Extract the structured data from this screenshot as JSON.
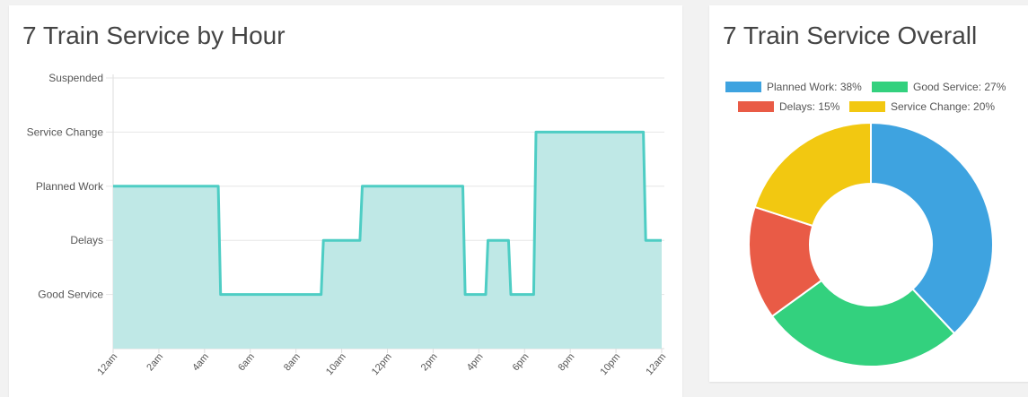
{
  "charts": {
    "hourly_title": "7 Train Service by Hour",
    "overall_title": "7 Train Service Overall"
  },
  "chart_data": [
    {
      "type": "area",
      "title": "7 Train Service by Hour",
      "x_ticks": [
        "12am",
        "2am",
        "4am",
        "6am",
        "8am",
        "10am",
        "12pm",
        "2pm",
        "4pm",
        "6pm",
        "8pm",
        "10pm",
        "12am"
      ],
      "y_categories": [
        "Good Service",
        "Delays",
        "Planned Work",
        "Service Change",
        "Suspended"
      ],
      "y_levels": {
        "Good Service": 1,
        "Delays": 2,
        "Planned Work": 3,
        "Service Change": 4,
        "Suspended": 5
      },
      "ylim": [
        0,
        5
      ],
      "xlim_hours": [
        0,
        24
      ],
      "series": [
        {
          "color": "#4ecdc4",
          "fill": "#bfe8e6",
          "points": [
            {
              "hour": 0,
              "level": 3
            },
            {
              "hour": 4.6,
              "level": 3
            },
            {
              "hour": 4.7,
              "level": 1
            },
            {
              "hour": 9.1,
              "level": 1
            },
            {
              "hour": 9.2,
              "level": 2
            },
            {
              "hour": 10.8,
              "level": 2
            },
            {
              "hour": 10.9,
              "level": 3
            },
            {
              "hour": 15.3,
              "level": 3
            },
            {
              "hour": 15.4,
              "level": 1
            },
            {
              "hour": 16.3,
              "level": 1
            },
            {
              "hour": 16.4,
              "level": 2
            },
            {
              "hour": 17.3,
              "level": 2
            },
            {
              "hour": 17.4,
              "level": 1
            },
            {
              "hour": 18.4,
              "level": 1
            },
            {
              "hour": 18.5,
              "level": 4
            },
            {
              "hour": 23.2,
              "level": 4
            },
            {
              "hour": 23.3,
              "level": 2
            },
            {
              "hour": 24,
              "level": 2
            }
          ]
        }
      ],
      "grid": true
    },
    {
      "type": "pie",
      "donut": true,
      "title": "7 Train Service Overall",
      "legend_position": "top",
      "slices": [
        {
          "label": "Planned Work: 38%",
          "value": 38,
          "color": "#3ea3e0"
        },
        {
          "label": "Good Service: 27%",
          "value": 27,
          "color": "#33d17e"
        },
        {
          "label": "Delays: 15%",
          "value": 15,
          "color": "#e95b46"
        },
        {
          "label": "Service Change: 20%",
          "value": 20,
          "color": "#f2c811"
        }
      ]
    }
  ]
}
